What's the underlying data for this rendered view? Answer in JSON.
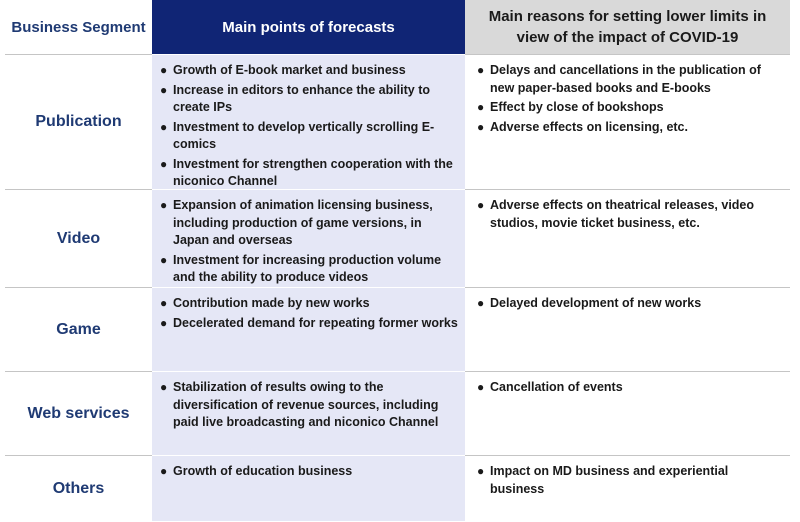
{
  "header": {
    "segment": "Business Segment",
    "forecasts": "Main points of forecasts",
    "reasons": "Main reasons for setting lower limits in view of the impact of COVID-19"
  },
  "bullet_glyph": "●",
  "rows": [
    {
      "segment": "Publication",
      "forecasts": [
        "Growth of E-book market and business",
        "Increase in editors to enhance the ability to create IPs",
        "Investment to develop vertically scrolling E-comics",
        "Investment for strengthen cooperation with the niconico Channel"
      ],
      "reasons": [
        "Delays and cancellations in the publication of new paper-based books and E-books",
        "Effect by close of bookshops",
        "Adverse effects on licensing, etc."
      ]
    },
    {
      "segment": "Video",
      "forecasts": [
        "Expansion of animation licensing business, including production of game versions, in Japan and overseas",
        "Investment for increasing production volume and the ability to produce videos"
      ],
      "reasons": [
        "Adverse effects on theatrical releases, video studios, movie ticket business, etc."
      ]
    },
    {
      "segment": "Game",
      "forecasts": [
        "Contribution made by new works",
        "Decelerated demand for repeating former works"
      ],
      "reasons": [
        "Delayed development of new works"
      ]
    },
    {
      "segment": "Web services",
      "forecasts": [
        "Stabilization of results owing to the diversification of revenue sources, including paid live broadcasting and niconico Channel"
      ],
      "reasons": [
        "Cancellation of events"
      ]
    },
    {
      "segment": "Others",
      "forecasts": [
        "Growth of education business"
      ],
      "reasons": [
        "Impact on MD business and experiential business"
      ]
    }
  ]
}
